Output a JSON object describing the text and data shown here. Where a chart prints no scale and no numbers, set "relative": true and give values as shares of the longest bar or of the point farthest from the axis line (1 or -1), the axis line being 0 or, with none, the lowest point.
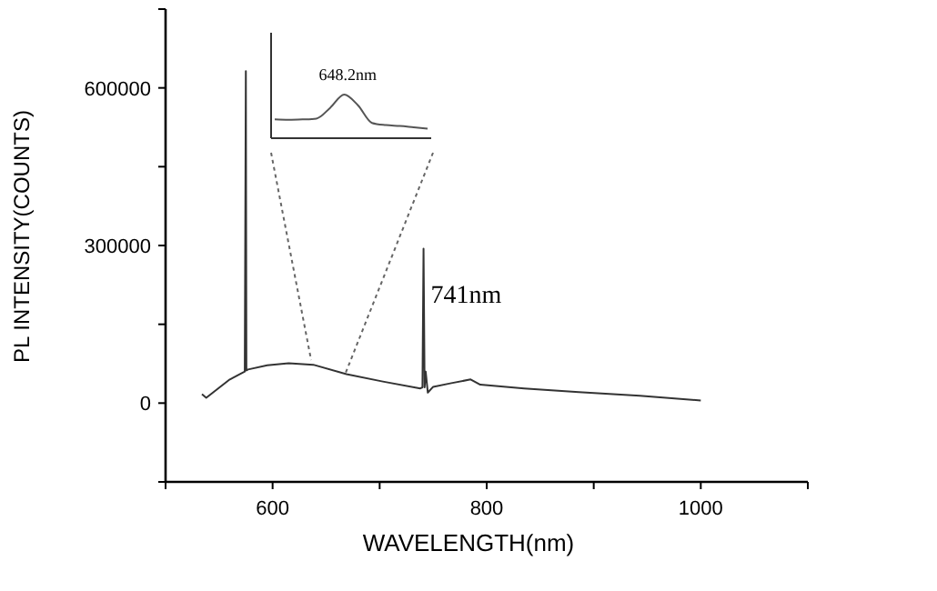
{
  "chart_data": [
    {
      "type": "line",
      "xlabel": "WAVELENGTH(nm)",
      "ylabel": "PL INTENSITY(COUNTS)",
      "x": [
        534,
        538,
        560,
        574,
        575,
        575.5,
        577,
        595,
        615,
        638,
        669,
        703,
        738,
        740,
        741,
        742,
        743,
        745,
        750,
        767,
        785,
        794,
        835,
        886,
        943,
        1000
      ],
      "series": [
        {
          "color": "#333333",
          "values": [
            17000,
            10000,
            45000,
            60000,
            632000,
            62000,
            64000,
            72000,
            76000,
            73000,
            55000,
            41000,
            28000,
            30000,
            294000,
            30000,
            60000,
            20000,
            31000,
            38000,
            45000,
            35000,
            28000,
            21000,
            14000,
            5000
          ]
        }
      ],
      "xlim": [
        500,
        1100
      ],
      "xticks": [
        {
          "value": 500,
          "label": null
        },
        600,
        {
          "value": 700,
          "label": null
        },
        800,
        {
          "value": 900,
          "label": null
        },
        1000,
        {
          "value": 1100,
          "label": null
        }
      ],
      "ylim": [
        -150000,
        750000
      ],
      "yticks": [
        {
          "value": -150000,
          "label": null
        },
        0,
        {
          "value": 150000,
          "label": null
        },
        300000,
        {
          "value": 450000,
          "label": null
        },
        600000,
        {
          "value": 750000,
          "label": null
        }
      ],
      "annotations": [
        {
          "text": "741nm",
          "x": 741,
          "y": 294000
        }
      ]
    },
    {
      "type": "line",
      "relative": true,
      "categories": [
        null,
        null,
        null,
        null,
        null,
        null,
        null,
        null,
        null,
        null,
        null,
        null
      ],
      "series": [
        {
          "color": "#555555",
          "values": [
            0.43,
            0.42,
            0.43,
            0.45,
            0.7,
            1,
            0.75,
            0.35,
            0.3,
            0.28,
            0.25,
            0.22
          ]
        }
      ],
      "annotations": [
        "648.2nm"
      ]
    }
  ]
}
